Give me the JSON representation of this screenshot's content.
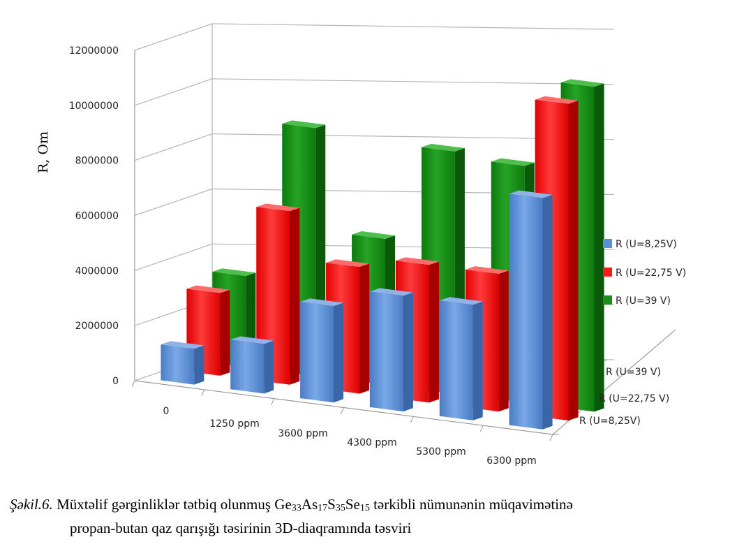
{
  "chart_data": {
    "type": "bar",
    "title": "",
    "xlabel": "",
    "ylabel": "R, Om",
    "ylim": [
      0,
      12000000
    ],
    "y_ticks": [
      "0",
      "2000000",
      "4000000",
      "6000000",
      "8000000",
      "10000000",
      "12000000"
    ],
    "categories": [
      "0",
      "1250 ppm",
      "3600 ppm",
      "4300 ppm",
      "5300 ppm",
      "6300 ppm"
    ],
    "series": [
      {
        "name": "R (U=8,25V)",
        "color": "#5b8fd6",
        "values": [
          1300000,
          1800000,
          3500000,
          4200000,
          4200000,
          8400000
        ]
      },
      {
        "name": "R (U=22,75 V)",
        "color": "#ff1a1a",
        "values": [
          3000000,
          6300000,
          4600000,
          5000000,
          5000000,
          11500000
        ]
      },
      {
        "name": "R (U=39 V)",
        "color": "#1a8f1a",
        "values": [
          3300000,
          9000000,
          5300000,
          8800000,
          8600000,
          11800000
        ]
      }
    ],
    "depth_labels": [
      "R (U=39 V)",
      "R (U=22,75 V)",
      "R (U=8,25V)"
    ],
    "grid": true,
    "legend": "right"
  },
  "caption": {
    "label": "Şəkil.6.",
    "parts": [
      {
        "t": " Müxtəlif  gərginliklər tətbiq olunmuş Ge",
        "sub": "33"
      },
      {
        "t": "As",
        "sub": "17"
      },
      {
        "t": "S",
        "sub": "35"
      },
      {
        "t": "Se",
        "sub": "15"
      },
      {
        "t": " tərkibli nümunənin müqavimətinə",
        "sub": ""
      }
    ],
    "line2": "propan-butan qaz qarışığı təsirinin 3D-diaqramında təsviri"
  }
}
